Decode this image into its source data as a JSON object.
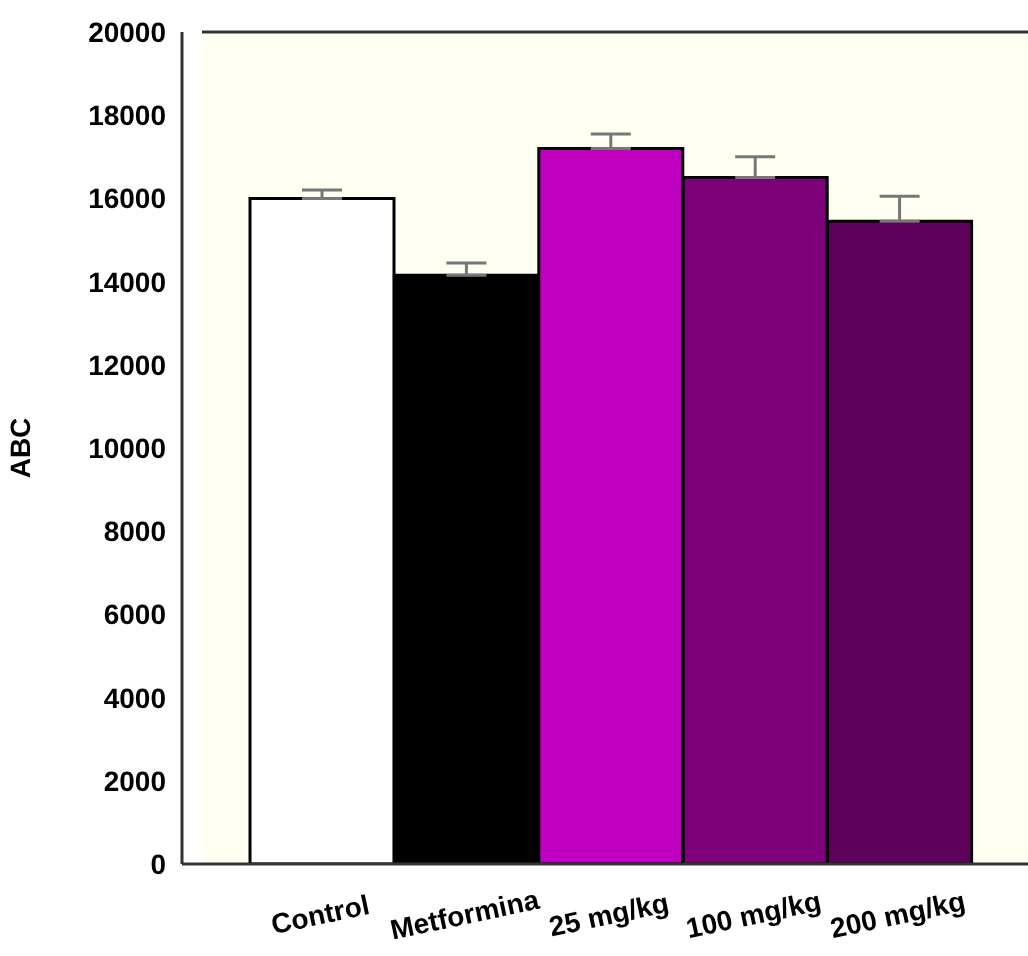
{
  "chart_data": {
    "type": "bar",
    "ylabel": "ABC",
    "categories": [
      "Control",
      "Metformina",
      "25 mg/kg",
      "100 mg/kg",
      "200 mg/kg"
    ],
    "values": [
      16000,
      14150,
      17200,
      16500,
      15450
    ],
    "errors": [
      [
        16000,
        16200
      ],
      [
        14150,
        14450
      ],
      [
        17200,
        17550
      ],
      [
        16500,
        17000
      ],
      [
        15450,
        16050
      ]
    ],
    "colors": [
      "#ffffff",
      "#000000",
      "#c000c0",
      "#7c0078",
      "#5c005a"
    ],
    "ylim": [
      0,
      20000
    ],
    "yticks": [
      0,
      2000,
      4000,
      6000,
      8000,
      10000,
      12000,
      14000,
      16000,
      18000,
      20000
    ],
    "grid": false,
    "legend": false
  }
}
